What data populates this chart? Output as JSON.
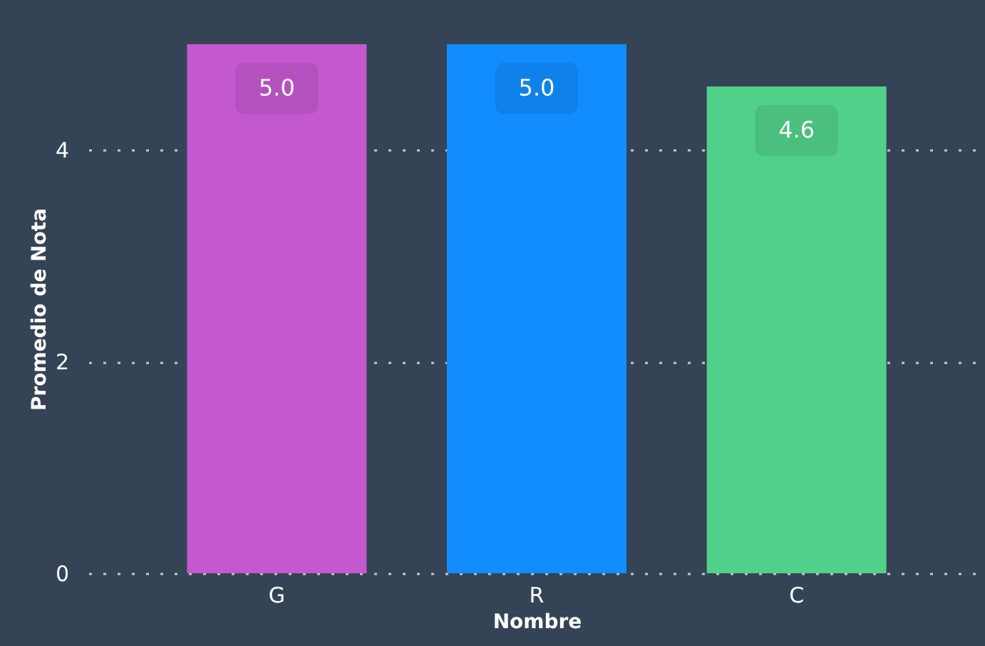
{
  "chart_data": {
    "type": "bar",
    "xlabel": "Nombre",
    "ylabel": "Promedio de Nota",
    "categories": [
      "G",
      "R",
      "C"
    ],
    "values": [
      5.0,
      5.0,
      4.6
    ],
    "colors": [
      "#c458cf",
      "#118dff",
      "#51d089"
    ],
    "value_labels": [
      "5.0",
      "5.0",
      "4.6"
    ],
    "ylim": [
      0,
      5
    ],
    "yticks": [
      0,
      2,
      4
    ],
    "grid": "y"
  }
}
